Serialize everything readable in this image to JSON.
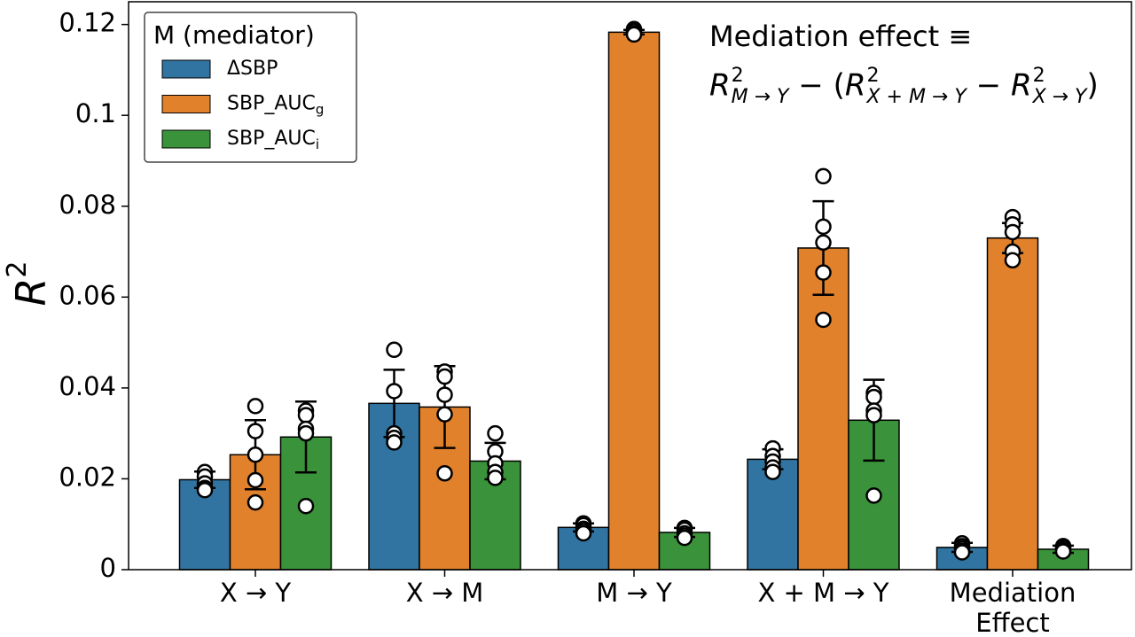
{
  "chart_data": {
    "type": "bar",
    "ylabel": {
      "base": "R",
      "sup": "2"
    },
    "categories": [
      "X → Y",
      "X → M",
      "M → Y",
      "X + M  →  Y",
      "Mediation\nEffect"
    ],
    "legend_title": "M (mediator)",
    "legend": "upper left",
    "series": [
      {
        "name": "ΔSBP",
        "sub": "",
        "color": "#3274a1",
        "values": [
          0.0198,
          0.0366,
          0.0093,
          0.0243,
          0.0049
        ],
        "errors": [
          0.0018,
          0.0074,
          0.0009,
          0.0022,
          0.001
        ],
        "points": [
          [
            0.0215,
            0.0205,
            0.019,
            0.018,
            0.0175
          ],
          [
            0.0484,
            0.0393,
            0.03,
            0.029,
            0.028
          ],
          [
            0.0102,
            0.0098,
            0.009,
            0.0085,
            0.008
          ],
          [
            0.0267,
            0.025,
            0.0238,
            0.0225,
            0.0215
          ],
          [
            0.0058,
            0.0052,
            0.0047,
            0.0042,
            0.0038
          ]
        ]
      },
      {
        "name": "SBP_AUC",
        "sub": "g",
        "color": "#e1812c",
        "values": [
          0.0253,
          0.0358,
          0.1183,
          0.0708,
          0.073
        ],
        "errors": [
          0.0076,
          0.009,
          0.0005,
          0.0103,
          0.0033
        ],
        "points": [
          [
            0.036,
            0.0305,
            0.0253,
            0.0197,
            0.0148
          ],
          [
            0.0436,
            0.0425,
            0.0385,
            0.0342,
            0.0212
          ],
          [
            0.119,
            0.1188,
            0.1185,
            0.118,
            0.1178
          ],
          [
            0.0866,
            0.0755,
            0.072,
            0.0654,
            0.055
          ],
          [
            0.0776,
            0.076,
            0.0743,
            0.07,
            0.0681
          ]
        ]
      },
      {
        "name": "SBP_AUC",
        "sub": "i",
        "color": "#3a923a",
        "values": [
          0.0292,
          0.0239,
          0.0082,
          0.0329,
          0.0045
        ],
        "errors": [
          0.0078,
          0.004,
          0.001,
          0.0089,
          0.0008
        ],
        "points": [
          [
            0.035,
            0.034,
            0.031,
            0.03,
            0.014
          ],
          [
            0.03,
            0.026,
            0.0234,
            0.0215,
            0.0202
          ],
          [
            0.0092,
            0.0088,
            0.008,
            0.0075,
            0.007
          ],
          [
            0.0389,
            0.038,
            0.035,
            0.034,
            0.0163
          ],
          [
            0.0052,
            0.005,
            0.0047,
            0.0043,
            0.004
          ]
        ]
      }
    ],
    "ylim": [
      0,
      0.125
    ],
    "yticks": [
      0,
      0.02,
      0.04,
      0.06,
      0.08,
      0.1,
      0.12
    ],
    "annotation": {
      "text": "Mediation effect ≡",
      "terms": [
        {
          "base": "R",
          "sup": "2",
          "sub": "M → Y"
        },
        {
          "base": "R",
          "sup": "2",
          "sub": "X + M → Y"
        },
        {
          "base": "R",
          "sup": "2",
          "sub": "X → Y"
        }
      ],
      "ops": [
        "− (",
        "−",
        ")"
      ]
    }
  }
}
